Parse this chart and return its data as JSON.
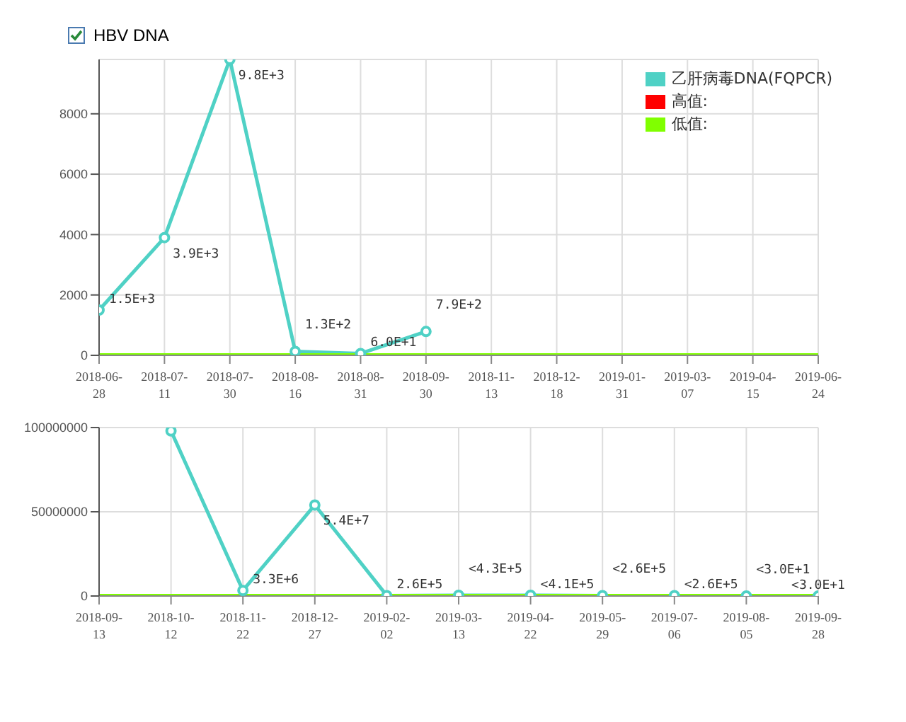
{
  "chart_data": [
    {
      "type": "line",
      "title": "HBV DNA",
      "categories": [
        "2018-06-28",
        "2018-07-11",
        "2018-07-30",
        "2018-08-16",
        "2018-08-31",
        "2018-09-30",
        "2018-11-13",
        "2018-12-18",
        "2019-01-31",
        "2019-03-07",
        "2019-04-15",
        "2019-06-24"
      ],
      "series": [
        {
          "name": "乙肝病毒DNA(FQPCR)",
          "color": "#4fd1c5",
          "marker": "circle",
          "values": [
            1500,
            3900,
            9800,
            130,
            60,
            790,
            null,
            null,
            null,
            null,
            null,
            null
          ],
          "value_labels": [
            "1.5E+3",
            "3.9E+3",
            "9.8E+3",
            "1.3E+2",
            "6.0E+1",
            "7.9E+2",
            null,
            null,
            null,
            null,
            null,
            null
          ]
        },
        {
          "name": "高值:",
          "color": "#ff0000",
          "marker": "none",
          "values": [
            null,
            null,
            null,
            null,
            null,
            null,
            null,
            null,
            null,
            null,
            null,
            null
          ]
        },
        {
          "name": "低值:",
          "color": "#80ff00",
          "marker": "none",
          "values": [
            0,
            0,
            0,
            0,
            0,
            0,
            0,
            0,
            0,
            0,
            0,
            0
          ]
        }
      ],
      "ylim": [
        0,
        9800
      ],
      "yticks": [
        0,
        2000,
        4000,
        6000,
        8000
      ],
      "grid": true,
      "legend": "top right"
    },
    {
      "type": "line",
      "categories": [
        "2018-09-13",
        "2018-10-12",
        "2018-11-22",
        "2018-12-27",
        "2019-02-02",
        "2019-03-13",
        "2019-04-22",
        "2019-05-29",
        "2019-07-06",
        "2019-08-05",
        "2019-09-28"
      ],
      "series": [
        {
          "color": "#4fd1c5",
          "marker": "circle",
          "values": [
            null,
            98000000,
            3300000,
            54000000,
            260000,
            430000,
            410000,
            260000,
            260000,
            30,
            30
          ],
          "value_labels": [
            null,
            null,
            "3.3E+6",
            "5.4E+7",
            "2.6E+5",
            "<4.3E+5",
            "<4.1E+5",
            "<2.6E+5",
            "<2.6E+5",
            "<3.0E+1",
            "<3.0E+1"
          ]
        },
        {
          "color": "#80ff00",
          "marker": "none",
          "values": [
            0,
            0,
            0,
            0,
            0,
            0,
            0,
            0,
            0,
            0,
            0
          ]
        }
      ],
      "ylim": [
        0,
        100000000
      ],
      "yticks": [
        0,
        50000000,
        100000000
      ],
      "grid": true,
      "legend": false
    }
  ]
}
